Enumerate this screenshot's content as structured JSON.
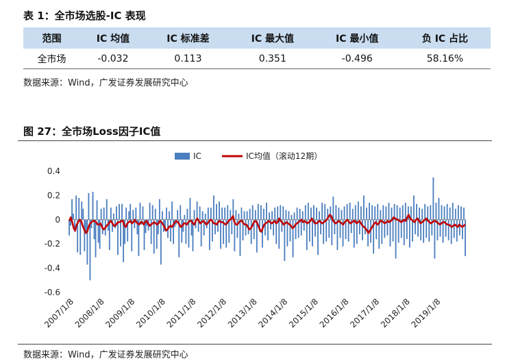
{
  "table": {
    "title": "表 1：全市场选股-IC 表现",
    "headers": [
      "范围",
      "IC 均值",
      "IC 标准差",
      "IC 最大值",
      "IC 最小值",
      "负 IC 占比"
    ],
    "rows": [
      [
        "全市场",
        "-0.032",
        "0.113",
        "0.351",
        "-0.496",
        "58.16%"
      ]
    ]
  },
  "source_label": "数据来源：Wind，广发证券发展研究中心",
  "figure": {
    "title": "图 27：全市场Loss因子IC值"
  },
  "chart_data": {
    "type": "bar",
    "x_tick_labels": [
      "2007/1/8",
      "2008/1/8",
      "2009/1/8",
      "2010/1/8",
      "2011/1/8",
      "2012/1/8",
      "2013/1/8",
      "2014/1/8",
      "2015/1/8",
      "2016/1/8",
      "2017/1/8",
      "2018/1/8",
      "2019/1/8"
    ],
    "ylim": [
      -0.6,
      0.4
    ],
    "yticks": [
      -0.6,
      -0.4,
      -0.2,
      0,
      0.2,
      0.4
    ],
    "ytick_labels": [
      "-0.6",
      "-0.4",
      "-0.2",
      "0",
      "0.2",
      "0.4"
    ],
    "legend_position": "top-center",
    "grid": false,
    "series": [
      {
        "name": "IC",
        "type": "bar",
        "color": "#4a7ebf",
        "values": [
          -0.13,
          -0.05,
          0.17,
          0.05,
          -0.1,
          0.2,
          -0.27,
          0.18,
          -0.29,
          0.15,
          0.09,
          -0.26,
          -0.11,
          -0.37,
          0.22,
          -0.5,
          -0.07,
          0.23,
          -0.16,
          -0.31,
          0.16,
          -0.19,
          -0.24,
          0.09,
          -0.12,
          0.1,
          -0.13,
          0.17,
          -0.09,
          -0.25,
          0.1,
          -0.1,
          0.05,
          -0.07,
          0.11,
          -0.29,
          0.13,
          -0.22,
          0.13,
          -0.35,
          -0.2,
          0.1,
          -0.18,
          0.07,
          0.13,
          -0.26,
          0.08,
          -0.07,
          0.1,
          -0.12,
          -0.3,
          0.14,
          -0.04,
          0.11,
          -0.25,
          -0.11,
          -0.05,
          -0.09,
          0.14,
          -0.2,
          0.12,
          -0.28,
          0.09,
          -0.24,
          -0.12,
          0.17,
          -0.37,
          0.07,
          -0.1,
          -0.09,
          0.1,
          -0.15,
          0.07,
          -0.18,
          0.15,
          -0.2,
          -0.06,
          -0.04,
          0.08,
          -0.31,
          0.12,
          -0.19,
          -0.1,
          0.04,
          -0.2,
          0.09,
          -0.23,
          0.18,
          -0.13,
          -0.26,
          0.08,
          -0.07,
          0.15,
          -0.1,
          0.11,
          -0.22,
          0.07,
          -0.13,
          0.05,
          -0.07,
          0.1,
          -0.25,
          0.1,
          -0.18,
          0.2,
          -0.12,
          0.13,
          -0.1,
          0.15,
          -0.24,
          0.1,
          -0.2,
          0.1,
          -0.23,
          0.12,
          -0.19,
          0.08,
          -0.12,
          0.17,
          -0.26,
          0.08,
          -0.15,
          0.05,
          -0.3,
          0.1,
          -0.17,
          0.07,
          -0.13,
          0.07,
          -0.12,
          0.09,
          -0.2,
          0.12,
          -0.16,
          0.08,
          -0.27,
          0.13,
          -0.1,
          0.12,
          -0.23,
          0.09,
          -0.13,
          0.14,
          -0.17,
          0.06,
          -0.08,
          0.07,
          -0.13,
          0.1,
          -0.2,
          0.11,
          -0.24,
          0.12,
          -0.1,
          0.11,
          -0.34,
          0.08,
          -0.22,
          0.07,
          -0.18,
          0.04,
          -0.31,
          0.06,
          -0.16,
          0.1,
          -0.15,
          0.09,
          -0.13,
          0.07,
          -0.09,
          0.12,
          -0.25,
          0.14,
          -0.18,
          0.1,
          -0.22,
          0.12,
          -0.14,
          0.1,
          -0.29,
          0.07,
          -0.12,
          0.14,
          -0.2,
          0.13,
          -0.18,
          0.09,
          -0.15,
          0.11,
          -0.21,
          0.19,
          -0.12,
          0.12,
          -0.25,
          0.1,
          -0.15,
          0.08,
          -0.22,
          0.11,
          -0.16,
          0.13,
          -0.18,
          0.14,
          -0.11,
          0.09,
          -0.23,
          0.12,
          -0.2,
          0.15,
          -0.12,
          0.11,
          -0.17,
          0.2,
          -0.12,
          0.1,
          -0.22,
          0.14,
          -0.19,
          0.12,
          -0.28,
          0.11,
          -0.16,
          0.13,
          -0.24,
          0.08,
          -0.2,
          0.12,
          -0.15,
          0.11,
          -0.13,
          0.14,
          -0.22,
          0.1,
          -0.18,
          0.13,
          -0.32,
          0.12,
          -0.19,
          0.1,
          -0.15,
          0.12,
          -0.21,
          0.14,
          -0.16,
          0.11,
          -0.23,
          0.11,
          -0.18,
          0.2,
          -0.12,
          0.13,
          -0.14,
          0.1,
          -0.17,
          0.09,
          -0.19,
          0.13,
          -0.15,
          0.11,
          -0.18,
          0.12,
          -0.13,
          0.35,
          -0.32,
          0.14,
          -0.17,
          0.18,
          -0.14,
          0.12,
          -0.19,
          0.11,
          -0.14,
          0.13,
          -0.17,
          0.1,
          -0.2,
          0.14,
          -0.15,
          0.09,
          -0.18,
          0.12,
          -0.13,
          0.11,
          -0.16,
          0.1,
          -0.3
        ]
      },
      {
        "name": "IC均值（滚动12期）",
        "type": "line",
        "color": "#c00000",
        "values": [
          -0.01,
          0.02,
          -0.02,
          -0.07,
          -0.09,
          -0.04,
          -0.02,
          0,
          -0.01,
          -0.05,
          -0.08,
          -0.11,
          -0.1,
          -0.06,
          -0.03,
          -0.02,
          -0.01,
          -0.01,
          -0.02,
          -0.04,
          -0.04,
          -0.03,
          -0.06,
          -0.08,
          -0.07,
          -0.05,
          -0.04,
          -0.02,
          -0.01,
          -0.03,
          -0.05,
          -0.05,
          -0.03,
          -0.02,
          -0.02,
          -0.01,
          -0.01,
          -0.05,
          -0.06,
          -0.03,
          -0.02,
          -0.01,
          -0.03,
          -0.02,
          0,
          -0.02,
          -0.03,
          -0.04,
          -0.02,
          -0.02,
          -0.04,
          -0.02,
          -0.01,
          -0.03,
          -0.05,
          -0.04,
          -0.03,
          -0.02,
          -0.03,
          -0.04,
          -0.03,
          -0.01,
          -0.02,
          -0.04,
          -0.06,
          -0.09,
          -0.08,
          -0.06,
          -0.05,
          -0.06,
          -0.04,
          -0.02,
          -0.01,
          -0.02,
          -0.04,
          -0.06,
          -0.05,
          -0.03,
          -0.03,
          -0.04,
          -0.02,
          -0.01,
          -0.01,
          -0.03,
          -0.04,
          -0.01,
          0.01,
          -0.01,
          -0.03,
          -0.02,
          -0.01,
          -0.02,
          -0.04,
          -0.03,
          -0.01,
          0,
          -0.01,
          -0.03,
          -0.03,
          -0.04,
          -0.02,
          -0.01,
          -0.02,
          -0.02,
          -0.03,
          -0.04,
          -0.03,
          -0.01,
          0,
          0.01,
          0.03,
          -0.02,
          -0.04,
          -0.04,
          -0.02,
          -0.01,
          -0.01,
          -0.03,
          -0.04,
          -0.04,
          -0.06,
          -0.08,
          -0.07,
          -0.05,
          -0.02,
          -0.01,
          -0.02,
          -0.05,
          -0.08,
          -0.1,
          -0.07,
          -0.04,
          -0.03,
          -0.02,
          -0.01,
          -0.02,
          -0.03,
          -0.02,
          -0.01,
          -0.03,
          -0.02,
          0.01,
          -0.01,
          -0.02,
          -0.04,
          -0.03,
          -0.02,
          -0.03,
          -0.04,
          -0.05,
          -0.07,
          -0.06,
          -0.04,
          -0.03,
          -0.02,
          -0.01,
          0,
          -0.02,
          -0.01,
          -0.02,
          -0.03,
          -0.02,
          -0.01,
          0.01,
          -0.01,
          -0.03,
          -0.03,
          -0.02,
          -0.01,
          -0.02,
          -0.03,
          -0.02,
          -0.01,
          0,
          0.02,
          0.04,
          0.03,
          0,
          -0.02,
          -0.03,
          -0.02,
          -0.01,
          -0.02,
          -0.03,
          -0.04,
          -0.02,
          -0.01,
          0,
          -0.02,
          -0.03,
          -0.02,
          -0.01,
          -0.01,
          -0.03,
          -0.02,
          -0.01,
          -0.03,
          -0.05,
          -0.06,
          -0.07,
          -0.09,
          -0.11,
          -0.09,
          -0.07,
          -0.05,
          -0.03,
          -0.02,
          -0.04,
          -0.03,
          -0.01,
          -0.01,
          -0.02,
          -0.03,
          -0.02,
          -0.01,
          -0.02,
          -0.01,
          0,
          0.02,
          0.01,
          0,
          0,
          -0.01,
          -0.02,
          -0.01,
          0,
          -0.01,
          0.02,
          0.04,
          0.01,
          0,
          -0.01,
          -0.02,
          0,
          0.01,
          -0.01,
          -0.03,
          -0.02,
          -0.01,
          0,
          0.01,
          -0.01,
          -0.02,
          -0.03,
          -0.02,
          -0.01,
          -0.01,
          -0.02,
          -0.03,
          -0.04,
          -0.03,
          -0.02,
          -0.02,
          -0.03,
          -0.04,
          -0.04,
          -0.05,
          -0.06,
          -0.05,
          -0.04,
          -0.05,
          -0.06,
          -0.04,
          -0.05,
          -0.06,
          -0.05,
          -0.04
        ]
      }
    ]
  }
}
